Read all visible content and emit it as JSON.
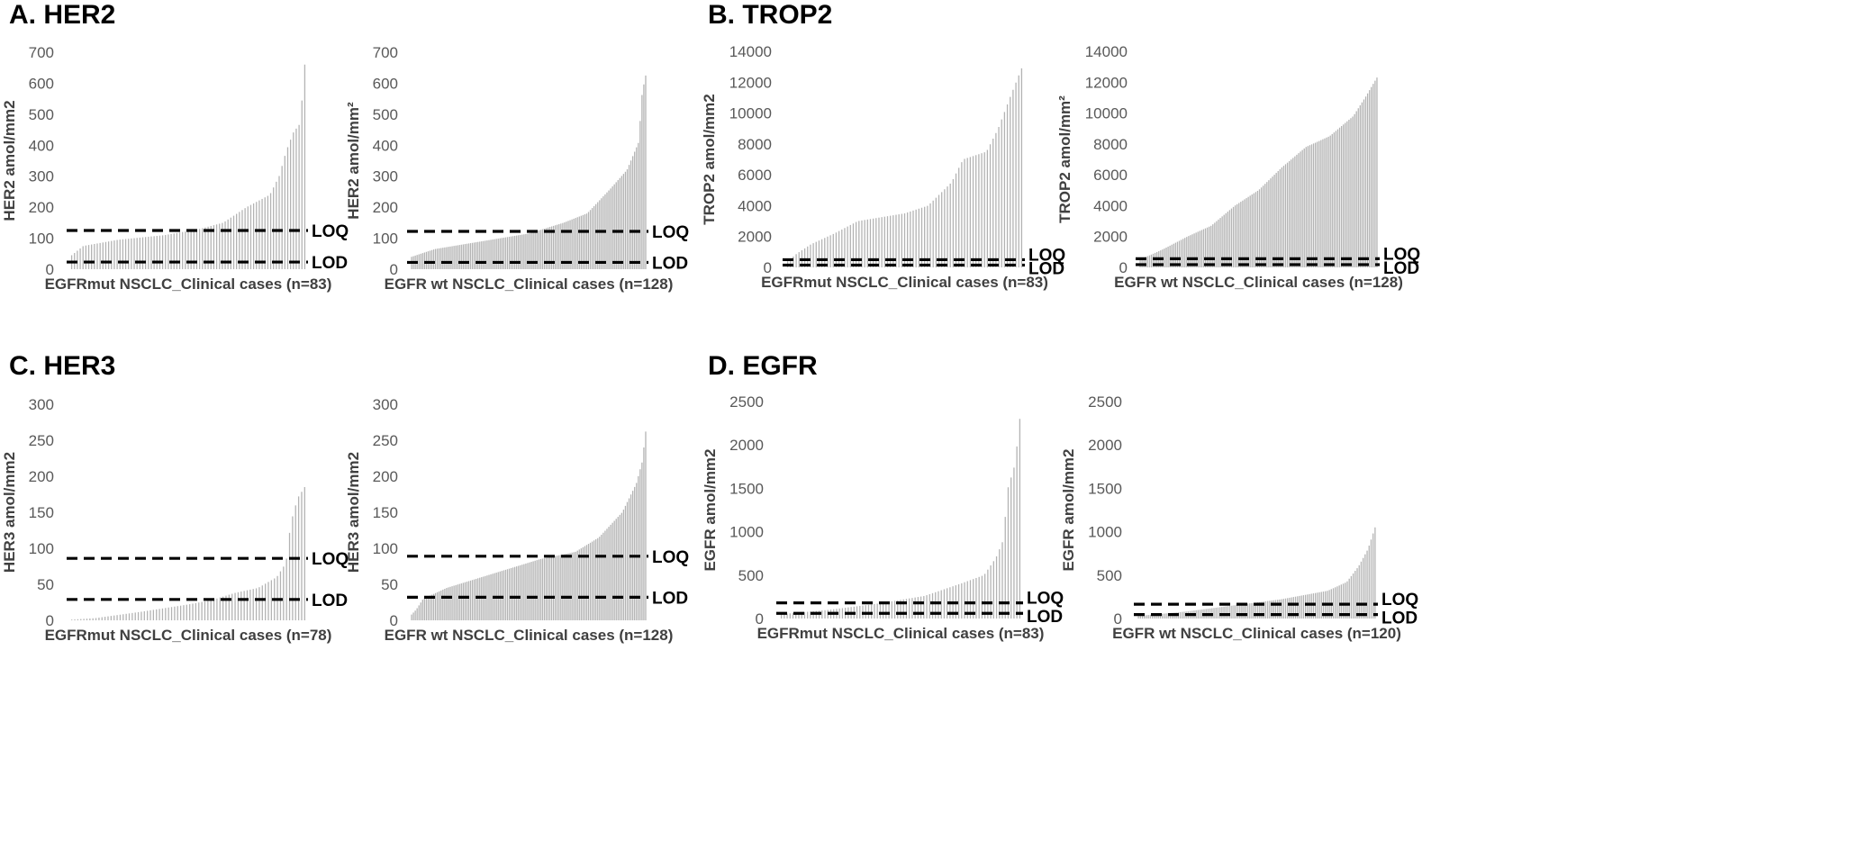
{
  "panels": [
    {
      "label": "A. HER2"
    },
    {
      "label": "B. TROP2"
    },
    {
      "label": "C. HER3"
    },
    {
      "label": "D. EGFR"
    }
  ],
  "colors": {
    "bar": "#b3b3b3",
    "line": "#000000",
    "tick": "#595959",
    "axis_title": "#404040"
  },
  "chart_data": [
    {
      "type": "bar",
      "panel": "A. HER2",
      "xlabel": "EGFRmut NSCLC_Clinical cases (n=83)",
      "ylabel": "HER2  amol/mm2",
      "ylim": [
        0,
        700
      ],
      "yticks": [
        0,
        100,
        200,
        300,
        400,
        500,
        600,
        700
      ],
      "n": 83,
      "curve": [
        [
          0,
          45
        ],
        [
          0.05,
          75
        ],
        [
          0.2,
          95
        ],
        [
          0.4,
          110
        ],
        [
          0.55,
          130
        ],
        [
          0.65,
          150
        ],
        [
          0.75,
          200
        ],
        [
          0.85,
          240
        ],
        [
          0.89,
          300
        ],
        [
          0.92,
          380
        ],
        [
          0.95,
          440
        ],
        [
          0.98,
          470
        ],
        [
          1,
          660
        ]
      ],
      "lines": [
        {
          "label": "LOQ",
          "value": 125
        },
        {
          "label": "LOD",
          "value": 23
        }
      ]
    },
    {
      "type": "bar",
      "panel": "A. HER2",
      "xlabel": "EGFR wt NSCLC_Clinical cases (n=128)",
      "ylabel": "HER2 amol/mm²",
      "ylim": [
        0,
        700
      ],
      "yticks": [
        0,
        100,
        200,
        300,
        400,
        500,
        600,
        700
      ],
      "n": 128,
      "curve": [
        [
          0,
          40
        ],
        [
          0.1,
          65
        ],
        [
          0.3,
          90
        ],
        [
          0.5,
          115
        ],
        [
          0.65,
          150
        ],
        [
          0.75,
          180
        ],
        [
          0.85,
          260
        ],
        [
          0.92,
          320
        ],
        [
          0.97,
          410
        ],
        [
          0.985,
          570
        ],
        [
          1,
          625
        ]
      ],
      "lines": [
        {
          "label": "LOQ",
          "value": 122
        },
        {
          "label": "LOD",
          "value": 22
        }
      ]
    },
    {
      "type": "bar",
      "panel": "B. TROP2",
      "xlabel": "EGFRmut NSCLC_Clinical cases (n=83)",
      "ylabel": "TROP2  amol/mm2",
      "ylim": [
        0,
        14000
      ],
      "yticks": [
        0,
        2000,
        4000,
        6000,
        8000,
        10000,
        12000,
        14000
      ],
      "n": 83,
      "curve": [
        [
          0,
          400
        ],
        [
          0.04,
          900
        ],
        [
          0.1,
          1500
        ],
        [
          0.2,
          2200
        ],
        [
          0.3,
          3000
        ],
        [
          0.5,
          3500
        ],
        [
          0.6,
          4000
        ],
        [
          0.7,
          5500
        ],
        [
          0.75,
          7000
        ],
        [
          0.85,
          7500
        ],
        [
          0.9,
          9000
        ],
        [
          0.95,
          11000
        ],
        [
          1,
          12900
        ]
      ],
      "lines": [
        {
          "label": "LOQ",
          "value": 500
        },
        {
          "label": "LOD",
          "value": 150
        }
      ]
    },
    {
      "type": "bar",
      "panel": "B. TROP2",
      "xlabel": "EGFR wt NSCLC_Clinical cases (n=128)",
      "ylabel": "TROP2 amol/mm²",
      "ylim": [
        0,
        14000
      ],
      "yticks": [
        0,
        2000,
        4000,
        6000,
        8000,
        10000,
        12000,
        14000
      ],
      "n": 128,
      "curve": [
        [
          0,
          500
        ],
        [
          0.1,
          1200
        ],
        [
          0.2,
          2000
        ],
        [
          0.3,
          2700
        ],
        [
          0.4,
          4000
        ],
        [
          0.5,
          5000
        ],
        [
          0.6,
          6500
        ],
        [
          0.7,
          7800
        ],
        [
          0.8,
          8500
        ],
        [
          0.9,
          9800
        ],
        [
          0.95,
          11000
        ],
        [
          1,
          12300
        ]
      ],
      "lines": [
        {
          "label": "LOQ",
          "value": 560
        },
        {
          "label": "LOD",
          "value": 180
        }
      ]
    },
    {
      "type": "bar",
      "panel": "C. HER3",
      "xlabel": "EGFRmut NSCLC_Clinical cases (n=78)",
      "ylabel": "HER3  amol/mm2",
      "ylim": [
        0,
        300
      ],
      "yticks": [
        0,
        50,
        100,
        150,
        200,
        250,
        300
      ],
      "n": 78,
      "curve": [
        [
          0,
          1
        ],
        [
          0.1,
          3
        ],
        [
          0.3,
          12
        ],
        [
          0.5,
          22
        ],
        [
          0.6,
          28
        ],
        [
          0.7,
          38
        ],
        [
          0.8,
          45
        ],
        [
          0.88,
          60
        ],
        [
          0.92,
          80
        ],
        [
          0.94,
          135
        ],
        [
          0.97,
          170
        ],
        [
          1,
          185
        ]
      ],
      "lines": [
        {
          "label": "LOQ",
          "value": 86
        },
        {
          "label": "LOD",
          "value": 29
        }
      ]
    },
    {
      "type": "bar",
      "panel": "C. HER3",
      "xlabel": "EGFR wt NSCLC_Clinical cases (n=128)",
      "ylabel": "HER3 amol/mm2",
      "ylim": [
        0,
        300
      ],
      "yticks": [
        0,
        50,
        100,
        150,
        200,
        250,
        300
      ],
      "n": 128,
      "curve": [
        [
          0,
          8
        ],
        [
          0.02,
          15
        ],
        [
          0.05,
          30
        ],
        [
          0.15,
          45
        ],
        [
          0.3,
          60
        ],
        [
          0.4,
          70
        ],
        [
          0.55,
          85
        ],
        [
          0.7,
          95
        ],
        [
          0.8,
          115
        ],
        [
          0.9,
          150
        ],
        [
          0.96,
          190
        ],
        [
          0.985,
          220
        ],
        [
          1,
          262
        ]
      ],
      "lines": [
        {
          "label": "LOQ",
          "value": 89
        },
        {
          "label": "LOD",
          "value": 32
        }
      ]
    },
    {
      "type": "bar",
      "panel": "D. EGFR",
      "xlabel": "EGFRmut NSCLC_Clinical cases (n=83)",
      "ylabel": "EGFR  amol/mm2",
      "ylim": [
        0,
        2500
      ],
      "yticks": [
        0,
        500,
        1000,
        1500,
        2000,
        2500
      ],
      "n": 83,
      "curve": [
        [
          0,
          50
        ],
        [
          0.2,
          100
        ],
        [
          0.4,
          170
        ],
        [
          0.6,
          260
        ],
        [
          0.75,
          400
        ],
        [
          0.85,
          500
        ],
        [
          0.9,
          700
        ],
        [
          0.93,
          900
        ],
        [
          0.95,
          1500
        ],
        [
          0.98,
          1780
        ],
        [
          1,
          2300
        ]
      ],
      "lines": [
        {
          "label": "LOQ",
          "value": 180
        },
        {
          "label": "LOD",
          "value": 60
        }
      ]
    },
    {
      "type": "bar",
      "panel": "D. EGFR",
      "xlabel": "EGFR wt NSCLC_Clinical cases (n=120)",
      "ylabel": "EGFR amol/mm2",
      "ylim": [
        0,
        2500
      ],
      "yticks": [
        0,
        500,
        1000,
        1500,
        2000,
        2500
      ],
      "n": 120,
      "curve": [
        [
          0,
          30
        ],
        [
          0.2,
          80
        ],
        [
          0.4,
          150
        ],
        [
          0.6,
          220
        ],
        [
          0.8,
          320
        ],
        [
          0.88,
          420
        ],
        [
          0.93,
          600
        ],
        [
          0.97,
          800
        ],
        [
          1,
          1050
        ]
      ],
      "lines": [
        {
          "label": "LOQ",
          "value": 165
        },
        {
          "label": "LOD",
          "value": 45
        }
      ]
    }
  ]
}
